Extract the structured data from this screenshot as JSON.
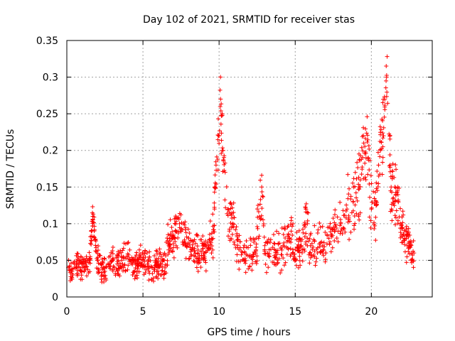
{
  "chart_data": {
    "type": "scatter",
    "title": "Day 102 of 2021, SRMTID for receiver stas",
    "xlabel": "GPS time / hours",
    "ylabel": "SRMTID / TECUs",
    "xlim": [
      0,
      24
    ],
    "ylim": [
      0,
      0.35
    ],
    "xticks": [
      0,
      5,
      10,
      15,
      20
    ],
    "yticks": [
      0,
      0.05,
      0.1,
      0.15,
      0.2,
      0.25,
      0.3,
      0.35
    ],
    "xtick_labels": [
      "0",
      "5",
      "10",
      "15",
      "20"
    ],
    "ytick_labels": [
      "0",
      "0.05",
      "0.1",
      "0.15",
      "0.2",
      "0.25",
      "0.3",
      "0.35"
    ],
    "grid": true,
    "marker": "+",
    "marker_color": "#ff0000",
    "series": [
      {
        "name": "SRMTID",
        "x": [
          0.1,
          0.3,
          0.5,
          0.8,
          1.0,
          1.2,
          1.5,
          1.7,
          1.8,
          2.0,
          2.3,
          2.5,
          2.8,
          3.0,
          3.3,
          3.6,
          4.0,
          4.3,
          4.6,
          5.0,
          5.3,
          5.6,
          6.0,
          6.4,
          6.7,
          7.0,
          7.4,
          7.8,
          8.2,
          8.6,
          9.0,
          9.3,
          9.6,
          9.8,
          10.0,
          10.1,
          10.2,
          10.4,
          10.6,
          10.9,
          11.3,
          11.7,
          12.0,
          12.4,
          12.8,
          13.0,
          13.4,
          13.8,
          14.2,
          14.6,
          15.0,
          15.4,
          15.8,
          16.0,
          16.4,
          16.8,
          17.2,
          17.6,
          18.0,
          18.4,
          18.8,
          19.2,
          19.5,
          19.8,
          20.0,
          20.3,
          20.6,
          20.8,
          21.0,
          21.3,
          21.6,
          21.9,
          22.2,
          22.5,
          22.8
        ],
        "y": [
          0.04,
          0.035,
          0.045,
          0.05,
          0.04,
          0.045,
          0.05,
          0.11,
          0.09,
          0.05,
          0.04,
          0.035,
          0.045,
          0.05,
          0.045,
          0.05,
          0.055,
          0.05,
          0.045,
          0.05,
          0.045,
          0.04,
          0.045,
          0.05,
          0.07,
          0.08,
          0.1,
          0.07,
          0.065,
          0.06,
          0.06,
          0.07,
          0.08,
          0.18,
          0.22,
          0.27,
          0.2,
          0.17,
          0.12,
          0.1,
          0.065,
          0.06,
          0.055,
          0.06,
          0.15,
          0.07,
          0.065,
          0.06,
          0.07,
          0.08,
          0.065,
          0.07,
          0.1,
          0.07,
          0.065,
          0.07,
          0.08,
          0.09,
          0.1,
          0.12,
          0.13,
          0.15,
          0.21,
          0.19,
          0.12,
          0.13,
          0.2,
          0.22,
          0.3,
          0.15,
          0.14,
          0.1,
          0.08,
          0.07,
          0.06
        ],
        "band": [
          0.015,
          0.015,
          0.02,
          0.02,
          0.02,
          0.02,
          0.02,
          0.02,
          0.03,
          0.02,
          0.02,
          0.02,
          0.02,
          0.02,
          0.02,
          0.02,
          0.02,
          0.02,
          0.02,
          0.02,
          0.02,
          0.02,
          0.02,
          0.025,
          0.03,
          0.03,
          0.03,
          0.03,
          0.025,
          0.025,
          0.025,
          0.03,
          0.04,
          0.05,
          0.05,
          0.04,
          0.05,
          0.05,
          0.04,
          0.035,
          0.03,
          0.025,
          0.03,
          0.03,
          0.04,
          0.03,
          0.03,
          0.03,
          0.03,
          0.03,
          0.03,
          0.03,
          0.04,
          0.03,
          0.03,
          0.03,
          0.03,
          0.035,
          0.035,
          0.04,
          0.04,
          0.05,
          0.05,
          0.05,
          0.05,
          0.05,
          0.05,
          0.05,
          0.05,
          0.05,
          0.045,
          0.035,
          0.03,
          0.025,
          0.02
        ],
        "density": 1300
      }
    ]
  }
}
